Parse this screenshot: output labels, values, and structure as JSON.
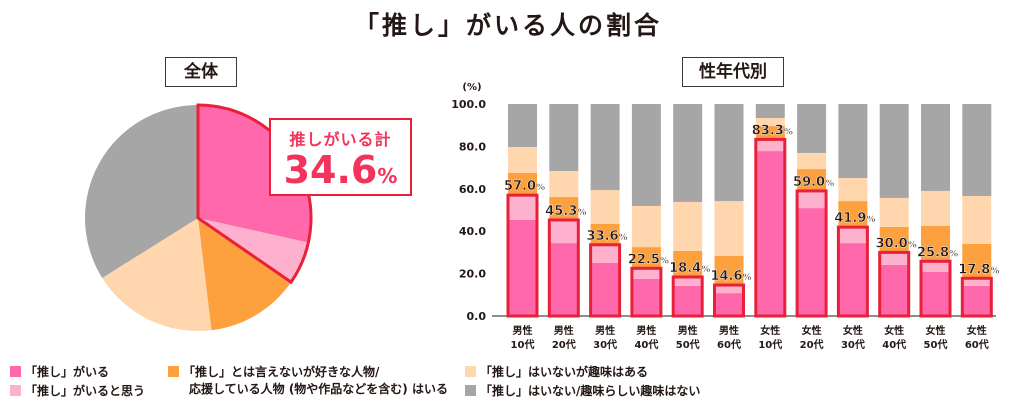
{
  "title": "「推し」がいる人の割合",
  "colors": {
    "oshi": "#ff69ac",
    "oshi_think": "#fdb1cd",
    "like_person": "#fda03e",
    "hobby": "#ffd6ae",
    "none": "#a6a6a6",
    "highlight_border": "#e8203a",
    "callout_text": "#f2335c"
  },
  "overall_panel": {
    "label": "全体",
    "callout_label": "推しがいる計",
    "callout_value": "34.6",
    "callout_unit": "%"
  },
  "by_group_panel": {
    "label": "性年代別"
  },
  "legend": [
    {
      "key": "oshi",
      "label": "「推し」がいる"
    },
    {
      "key": "oshi_think",
      "label": "「推し」がいると思う"
    },
    {
      "key": "like_person",
      "label": "「推し」とは言えないが好きな人物/",
      "label2": "応援している人物 (物や作品などを含む) はいる"
    },
    {
      "key": "hobby",
      "label": "「推し」はいないが趣味はある"
    },
    {
      "key": "none",
      "label": "「推し」はいない/趣味らしい趣味はない"
    }
  ],
  "chart_data": [
    {
      "type": "pie",
      "title": "全体",
      "start": "12 o'clock, clockwise",
      "slices": [
        {
          "key": "oshi",
          "label": "「推し」がいる",
          "value": 28.5
        },
        {
          "key": "oshi_think",
          "label": "「推し」がいると思う",
          "value": 6.1
        },
        {
          "key": "like_person",
          "label": "「推し」とは言えないが好きな人物/応援している人物 (物や作品などを含む) はいる",
          "value": 13.5
        },
        {
          "key": "hobby",
          "label": "「推し」はいないが趣味はある",
          "value": 18.0
        },
        {
          "key": "none",
          "label": "「推し」はいない/趣味らしい趣味はない",
          "value": 33.9
        }
      ],
      "annotation": {
        "label": "推しがいる計",
        "value": 34.6,
        "unit": "%"
      }
    },
    {
      "type": "bar",
      "stacked": true,
      "title": "性年代別",
      "ylabel": "(%)",
      "ylim": [
        0,
        100
      ],
      "yticks": [
        "0.0",
        "20.0",
        "40.0",
        "60.0",
        "80.0",
        "100.0"
      ],
      "grid": false,
      "categories": [
        [
          "男性",
          "10代"
        ],
        [
          "男性",
          "20代"
        ],
        [
          "男性",
          "30代"
        ],
        [
          "男性",
          "40代"
        ],
        [
          "男性",
          "50代"
        ],
        [
          "男性",
          "60代"
        ],
        [
          "女性",
          "10代"
        ],
        [
          "女性",
          "20代"
        ],
        [
          "女性",
          "30代"
        ],
        [
          "女性",
          "40代"
        ],
        [
          "女性",
          "50代"
        ],
        [
          "女性",
          "60代"
        ]
      ],
      "series": [
        {
          "key": "oshi",
          "name": "「推し」がいる",
          "values": [
            45.3,
            34.4,
            25.0,
            17.5,
            14.2,
            10.8,
            77.8,
            50.9,
            34.4,
            24.1,
            20.8,
            14.2
          ]
        },
        {
          "key": "oshi_think",
          "name": "「推し」がいると思う",
          "values": [
            11.7,
            10.9,
            8.6,
            5.0,
            4.2,
            3.8,
            5.5,
            8.1,
            7.5,
            5.9,
            5.0,
            3.6
          ]
        },
        {
          "key": "like_person",
          "name": "「推し」とは言えないが好きな人物/応援している人物 (物や作品などを含む) はいる",
          "values": [
            10.5,
            10.8,
            9.8,
            10.0,
            12.3,
            13.7,
            6.3,
            10.3,
            12.3,
            12.0,
            16.7,
            16.2
          ]
        },
        {
          "key": "hobby",
          "name": "「推し」はいないが趣味はある",
          "values": [
            12.2,
            12.3,
            16.0,
            19.4,
            23.1,
            25.9,
            3.8,
            7.6,
            10.9,
            13.7,
            16.5,
            22.6
          ]
        },
        {
          "key": "none",
          "name": "「推し」はいない/趣味らしい趣味はない",
          "values": [
            20.3,
            31.6,
            40.6,
            48.1,
            46.2,
            45.8,
            6.6,
            23.1,
            34.9,
            44.3,
            41.0,
            43.4
          ]
        }
      ],
      "totals_label": [
        "57.0",
        "45.3",
        "33.6",
        "22.5",
        "18.4",
        "14.6",
        "83.3",
        "59.0",
        "41.9",
        "30.0",
        "25.8",
        "17.8"
      ],
      "totals_unit": "%"
    }
  ]
}
